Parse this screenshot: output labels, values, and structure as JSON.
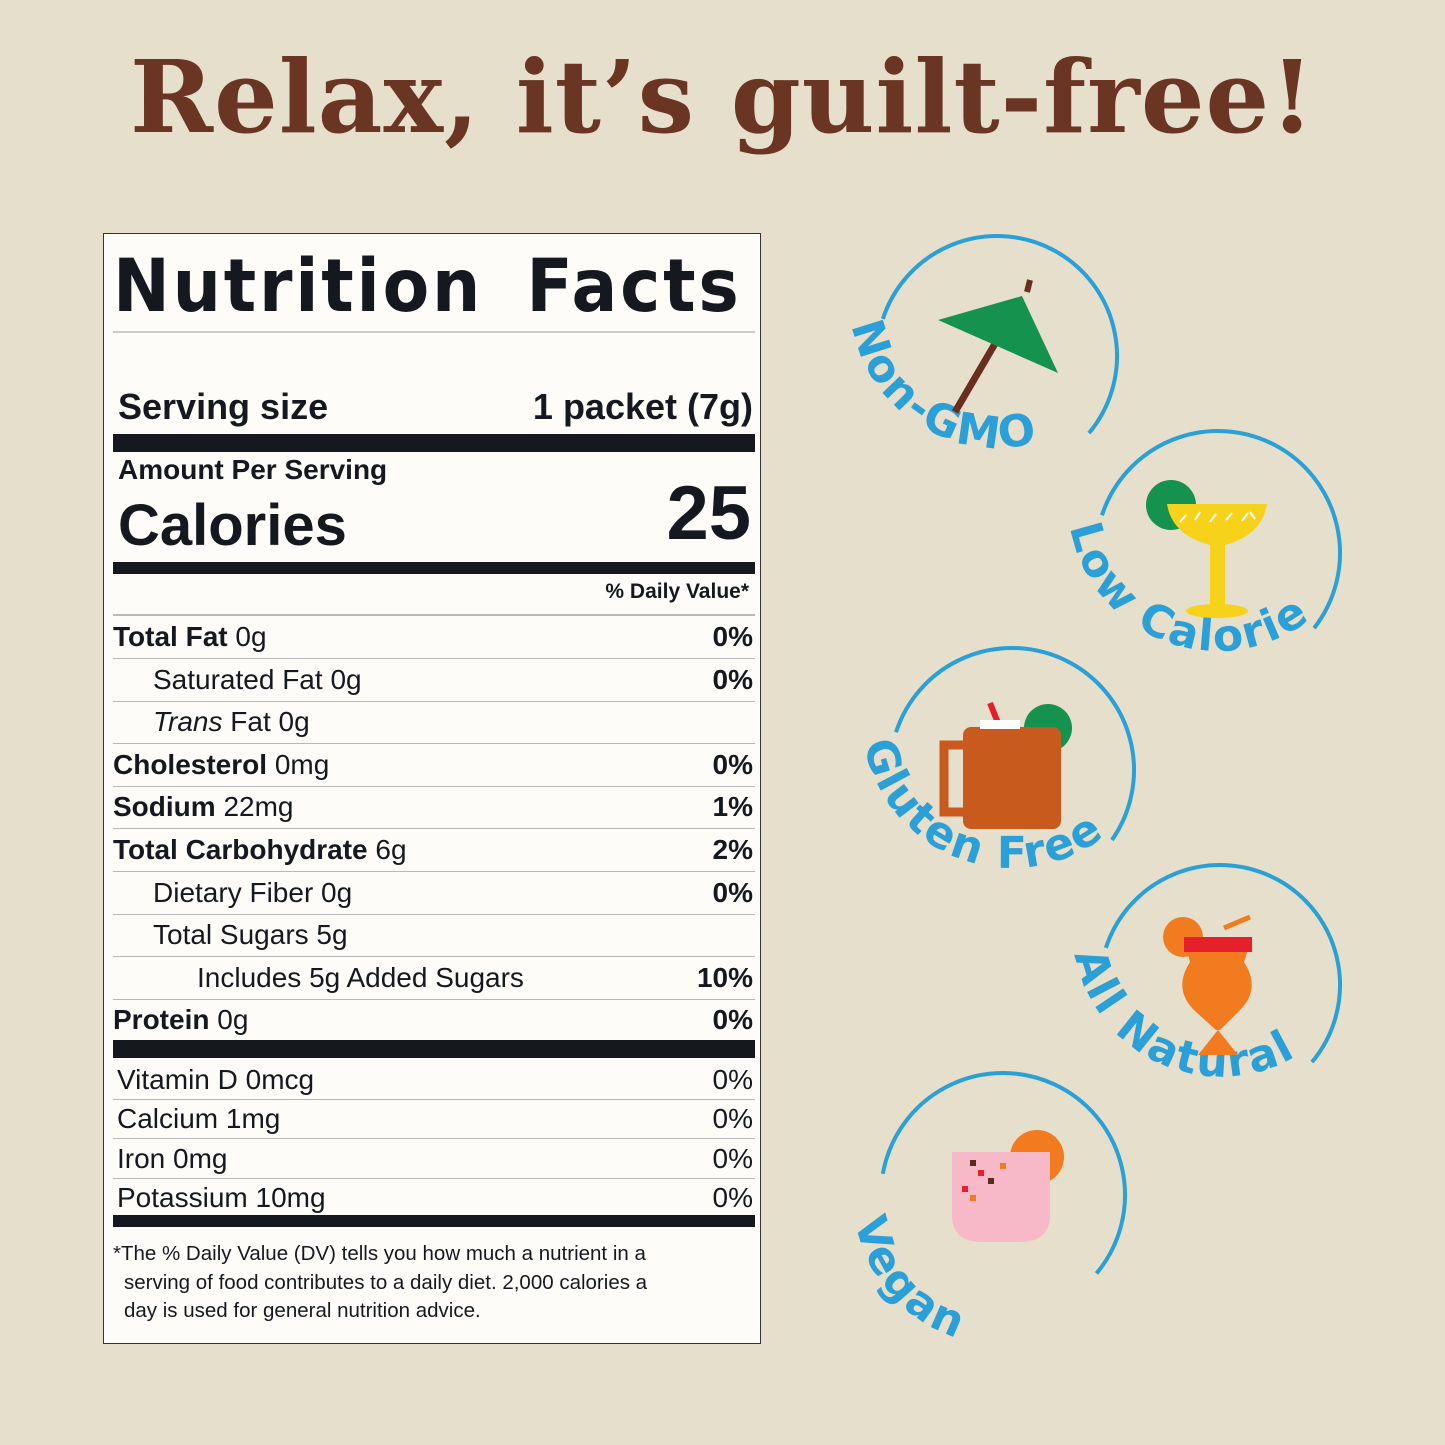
{
  "headline": "Relax, it’s guilt-free!",
  "nutrition": {
    "title": "Nutrition Facts",
    "serving_size_label": "Serving size",
    "serving_size_value": "1 packet (7g)",
    "amount_per_serving": "Amount Per Serving",
    "calories_label": "Calories",
    "calories_value": "25",
    "daily_value_header": "% Daily Value*",
    "nutrients": [
      {
        "name": "Total Fat",
        "amount": "0g",
        "dv": "0%"
      },
      {
        "name": "Saturated Fat",
        "amount": "0g",
        "dv": "0%"
      },
      {
        "name": "Trans",
        "suffix": "Fat",
        "amount": "0g",
        "dv": ""
      },
      {
        "name": "Cholesterol",
        "amount": "0mg",
        "dv": "0%"
      },
      {
        "name": "Sodium",
        "amount": "22mg",
        "dv": "1%"
      },
      {
        "name": "Total Carbohydrate",
        "amount": "6g",
        "dv": "2%"
      },
      {
        "name": "Dietary Fiber",
        "amount": "0g",
        "dv": "0%"
      },
      {
        "name": "Total Sugars",
        "amount": "5g",
        "dv": ""
      },
      {
        "name": "Includes 5g Added Sugars",
        "amount": "",
        "dv": "10%"
      },
      {
        "name": "Protein",
        "amount": "0g",
        "dv": "0%"
      }
    ],
    "vitamins": [
      {
        "name": "Vitamin D 0mcg",
        "dv": "0%"
      },
      {
        "name": "Calcium 1mg",
        "dv": "0%"
      },
      {
        "name": "Iron 0mg",
        "dv": "0%"
      },
      {
        "name": "Potassium 10mg",
        "dv": "0%"
      }
    ],
    "footnote_line1": "The % Daily Value (DV) tells you how much a nutrient in a",
    "footnote_line2": "serving of food contributes to a daily diet. 2,000 calories a",
    "footnote_line3": "day is used for general nutrition advice."
  },
  "badges": [
    {
      "label": "Non-GMO",
      "icon": "cocktail-umbrella-icon"
    },
    {
      "label": "Low Calorie",
      "icon": "margarita-glass-icon"
    },
    {
      "label": "Gluten Free",
      "icon": "mule-mug-icon"
    },
    {
      "label": "All Natural",
      "icon": "hurricane-cocktail-icon"
    },
    {
      "label": "Vegan",
      "icon": "pink-cocktail-icon"
    }
  ],
  "colors": {
    "background": "#e6dfcb",
    "headline": "#6b3524",
    "badge_blue": "#2a9fd8",
    "label_ink": "#15191f"
  }
}
